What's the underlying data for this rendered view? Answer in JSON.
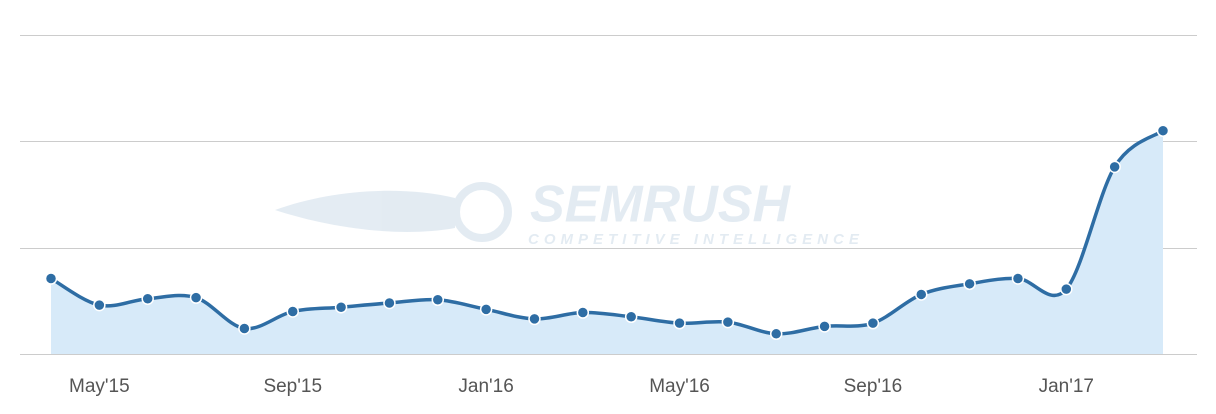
{
  "chart_data": {
    "type": "line",
    "categories": [
      null,
      "May'15",
      null,
      null,
      null,
      "Sep'15",
      null,
      null,
      null,
      "Jan'16",
      null,
      null,
      null,
      "May'16",
      null,
      null,
      null,
      "Sep'16",
      null,
      null,
      null,
      "Jan'17",
      null,
      null
    ],
    "series": [
      {
        "color": "#2e6da4",
        "area_color": "#d7eaf9",
        "values": [
          0.71,
          0.46,
          0.52,
          0.53,
          0.24,
          0.4,
          0.44,
          0.48,
          0.51,
          0.42,
          0.33,
          0.39,
          0.35,
          0.29,
          0.3,
          0.19,
          0.26,
          0.29,
          0.56,
          0.66,
          0.71,
          0.61,
          1.76,
          2.1
        ]
      }
    ],
    "ylim": [
      0,
      3
    ],
    "yticks": [
      0,
      1,
      2,
      3
    ],
    "grid": true
  },
  "watermark": {
    "title": "SEMRUSH",
    "subtitle": "COMPETITIVE INTELLIGENCE"
  }
}
